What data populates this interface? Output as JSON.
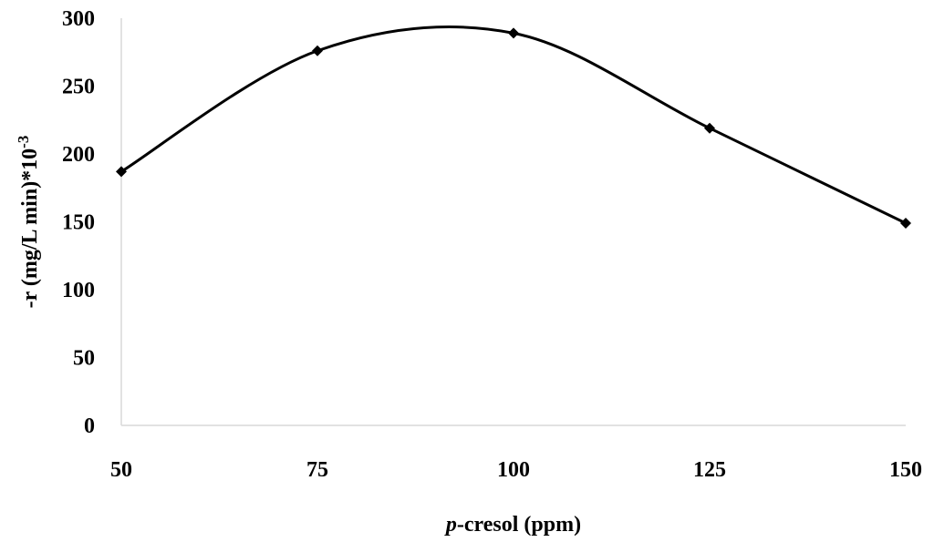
{
  "chart_data": {
    "type": "line",
    "smooth": true,
    "x": [
      50,
      75,
      100,
      125,
      150
    ],
    "series": [
      {
        "values": [
          187,
          276,
          289,
          219,
          149
        ],
        "marker": "diamond",
        "color": "#000000"
      }
    ],
    "xlabel_italic": "p",
    "xlabel_rest": "-cresol (ppm)",
    "ylabel_main": "-r (mg/L min)*10",
    "ylabel_sup": "-3",
    "xlim": [
      50,
      150
    ],
    "ylim": [
      0,
      300
    ],
    "xticks": [
      50,
      75,
      100,
      125,
      150
    ],
    "yticks": [
      0,
      50,
      100,
      150,
      200,
      250,
      300
    ],
    "grid": false,
    "legend": "none"
  }
}
